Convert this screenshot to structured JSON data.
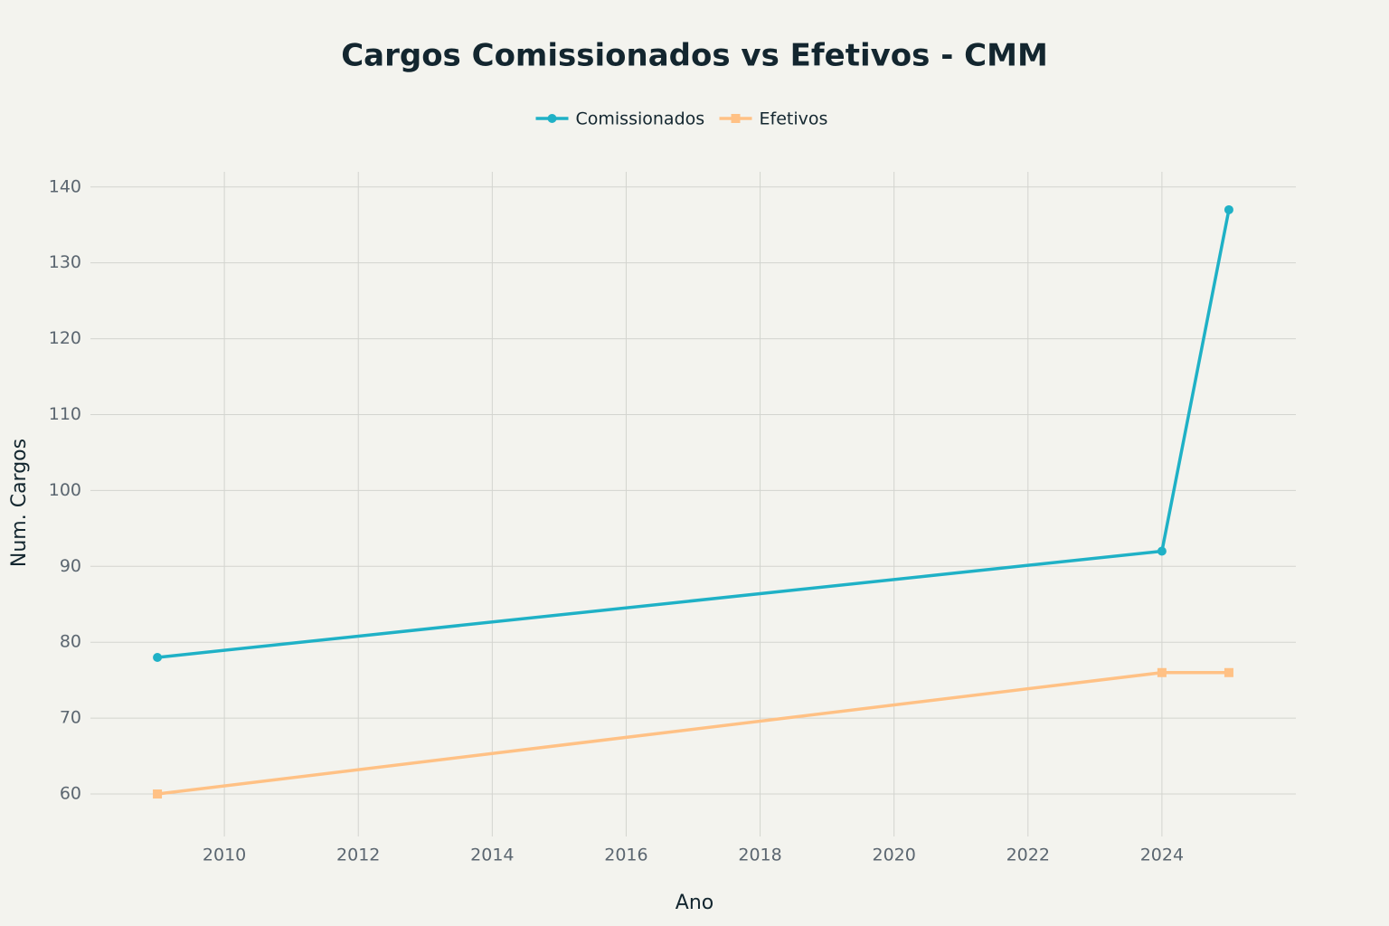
{
  "chart_data": {
    "type": "line",
    "title": "Cargos Comissionados vs Efetivos - CMM",
    "x_label": "Ano",
    "y_label": "Num. Cargos",
    "x": [
      2009,
      2024,
      2025
    ],
    "series": [
      {
        "name": "Comissionados",
        "color": "#1FB1C6",
        "marker": "circle",
        "values": [
          78,
          92,
          137
        ]
      },
      {
        "name": "Efetivos",
        "color": "#FFC185",
        "marker": "square",
        "values": [
          60,
          76,
          76
        ]
      }
    ],
    "xlim": [
      2008,
      2026
    ],
    "xticks": [
      2010,
      2012,
      2014,
      2016,
      2018,
      2020,
      2022,
      2024
    ],
    "ylim": [
      54.4,
      142
    ],
    "yticks": [
      60,
      70,
      80,
      90,
      100,
      110,
      120,
      130,
      140
    ],
    "grid": true,
    "legend": "top"
  }
}
